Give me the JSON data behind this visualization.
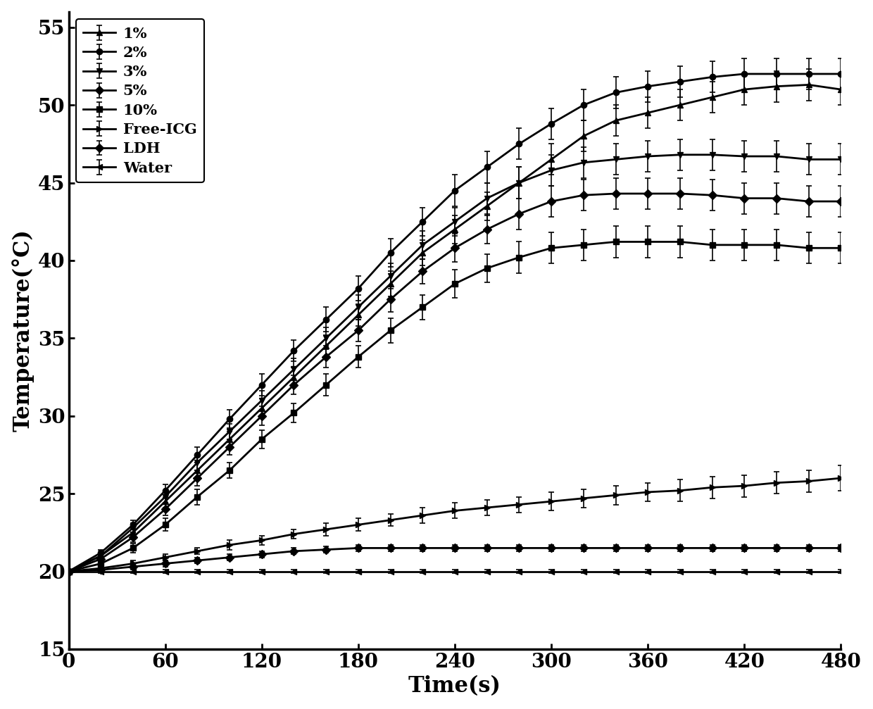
{
  "time": [
    0,
    20,
    40,
    60,
    80,
    100,
    120,
    140,
    160,
    180,
    200,
    220,
    240,
    260,
    280,
    300,
    320,
    340,
    360,
    380,
    400,
    420,
    440,
    460,
    480
  ],
  "series": {
    "1%": [
      20.0,
      21.0,
      22.5,
      24.5,
      26.5,
      28.5,
      30.5,
      32.5,
      34.5,
      36.5,
      38.5,
      40.5,
      42.0,
      43.5,
      45.0,
      46.5,
      48.0,
      49.0,
      49.5,
      50.0,
      50.5,
      51.0,
      51.2,
      51.3,
      51.0
    ],
    "2%": [
      20.0,
      21.2,
      23.0,
      25.2,
      27.5,
      29.8,
      32.0,
      34.2,
      36.2,
      38.2,
      40.5,
      42.5,
      44.5,
      46.0,
      47.5,
      48.8,
      50.0,
      50.8,
      51.2,
      51.5,
      51.8,
      52.0,
      52.0,
      52.0,
      52.0
    ],
    "3%": [
      20.0,
      21.0,
      22.8,
      24.8,
      27.0,
      29.0,
      31.0,
      33.0,
      35.0,
      37.0,
      39.0,
      41.0,
      42.5,
      44.0,
      45.0,
      45.8,
      46.3,
      46.5,
      46.7,
      46.8,
      46.8,
      46.7,
      46.7,
      46.5,
      46.5
    ],
    "5%": [
      20.0,
      20.8,
      22.2,
      24.0,
      26.0,
      28.0,
      30.0,
      32.0,
      33.8,
      35.5,
      37.5,
      39.3,
      40.8,
      42.0,
      43.0,
      43.8,
      44.2,
      44.3,
      44.3,
      44.3,
      44.2,
      44.0,
      44.0,
      43.8,
      43.8
    ],
    "10%": [
      20.0,
      20.5,
      21.5,
      23.0,
      24.8,
      26.5,
      28.5,
      30.2,
      32.0,
      33.8,
      35.5,
      37.0,
      38.5,
      39.5,
      40.2,
      40.8,
      41.0,
      41.2,
      41.2,
      41.2,
      41.0,
      41.0,
      41.0,
      40.8,
      40.8
    ],
    "Free-ICG": [
      20.0,
      20.2,
      20.5,
      20.9,
      21.3,
      21.7,
      22.0,
      22.4,
      22.7,
      23.0,
      23.3,
      23.6,
      23.9,
      24.1,
      24.3,
      24.5,
      24.7,
      24.9,
      25.1,
      25.2,
      25.4,
      25.5,
      25.7,
      25.8,
      26.0
    ],
    "LDH": [
      20.0,
      20.1,
      20.3,
      20.5,
      20.7,
      20.9,
      21.1,
      21.3,
      21.4,
      21.5,
      21.5,
      21.5,
      21.5,
      21.5,
      21.5,
      21.5,
      21.5,
      21.5,
      21.5,
      21.5,
      21.5,
      21.5,
      21.5,
      21.5,
      21.5
    ],
    "Water": [
      20.0,
      20.0,
      20.0,
      20.0,
      20.0,
      20.0,
      20.0,
      20.0,
      20.0,
      20.0,
      20.0,
      20.0,
      20.0,
      20.0,
      20.0,
      20.0,
      20.0,
      20.0,
      20.0,
      20.0,
      20.0,
      20.0,
      20.0,
      20.0,
      20.0
    ]
  },
  "errors": {
    "1%": [
      0.1,
      0.2,
      0.3,
      0.4,
      0.5,
      0.5,
      0.6,
      0.6,
      0.7,
      0.7,
      0.8,
      0.8,
      0.9,
      0.9,
      1.0,
      1.0,
      1.0,
      1.0,
      1.0,
      1.0,
      1.0,
      1.0,
      1.0,
      1.0,
      1.0
    ],
    "2%": [
      0.1,
      0.2,
      0.3,
      0.4,
      0.5,
      0.6,
      0.7,
      0.7,
      0.8,
      0.8,
      0.9,
      0.9,
      1.0,
      1.0,
      1.0,
      1.0,
      1.0,
      1.0,
      1.0,
      1.0,
      1.0,
      1.0,
      1.0,
      1.0,
      1.0
    ],
    "3%": [
      0.1,
      0.2,
      0.3,
      0.4,
      0.5,
      0.5,
      0.6,
      0.7,
      0.7,
      0.8,
      0.8,
      0.9,
      0.9,
      1.0,
      1.0,
      1.0,
      1.0,
      1.0,
      1.0,
      1.0,
      1.0,
      1.0,
      1.0,
      1.0,
      1.0
    ],
    "5%": [
      0.1,
      0.2,
      0.3,
      0.4,
      0.5,
      0.5,
      0.6,
      0.6,
      0.7,
      0.7,
      0.8,
      0.8,
      0.9,
      0.9,
      1.0,
      1.0,
      1.0,
      1.0,
      1.0,
      1.0,
      1.0,
      1.0,
      1.0,
      1.0,
      1.0
    ],
    "10%": [
      0.1,
      0.2,
      0.3,
      0.4,
      0.5,
      0.5,
      0.6,
      0.6,
      0.7,
      0.7,
      0.8,
      0.8,
      0.9,
      0.9,
      1.0,
      1.0,
      1.0,
      1.0,
      1.0,
      1.0,
      1.0,
      1.0,
      1.0,
      1.0,
      1.0
    ],
    "Free-ICG": [
      0.1,
      0.1,
      0.2,
      0.2,
      0.2,
      0.3,
      0.3,
      0.3,
      0.4,
      0.4,
      0.4,
      0.5,
      0.5,
      0.5,
      0.5,
      0.6,
      0.6,
      0.6,
      0.6,
      0.7,
      0.7,
      0.7,
      0.7,
      0.7,
      0.8
    ],
    "LDH": [
      0.1,
      0.1,
      0.1,
      0.2,
      0.2,
      0.2,
      0.2,
      0.2,
      0.2,
      0.2,
      0.2,
      0.2,
      0.2,
      0.2,
      0.2,
      0.2,
      0.2,
      0.2,
      0.2,
      0.2,
      0.2,
      0.2,
      0.2,
      0.2,
      0.2
    ],
    "Water": [
      0.1,
      0.1,
      0.1,
      0.1,
      0.1,
      0.1,
      0.1,
      0.1,
      0.1,
      0.1,
      0.1,
      0.1,
      0.1,
      0.1,
      0.1,
      0.1,
      0.1,
      0.1,
      0.1,
      0.1,
      0.1,
      0.1,
      0.1,
      0.1,
      0.1
    ]
  },
  "markers": {
    "1%": "^",
    "2%": "o",
    "3%": "v",
    "5%": "D",
    "10%": "s",
    "Free-ICG": ">",
    "LDH": "D",
    "Water": "<"
  },
  "legend_labels": [
    "1%",
    "2%",
    "3%",
    "5%",
    "10%",
    "Free-ICG",
    "LDH",
    "Water"
  ],
  "ylabel": "Temperature(°C)",
  "xlabel": "Time(s)",
  "ylim": [
    15,
    56
  ],
  "xlim": [
    0,
    480
  ],
  "yticks": [
    15,
    20,
    25,
    30,
    35,
    40,
    45,
    50,
    55
  ],
  "xticks": [
    0,
    60,
    120,
    180,
    240,
    300,
    360,
    420,
    480
  ],
  "color": "#000000",
  "linewidth": 2.0,
  "markersize": 6,
  "elinewidth": 1.2,
  "capsize": 3
}
